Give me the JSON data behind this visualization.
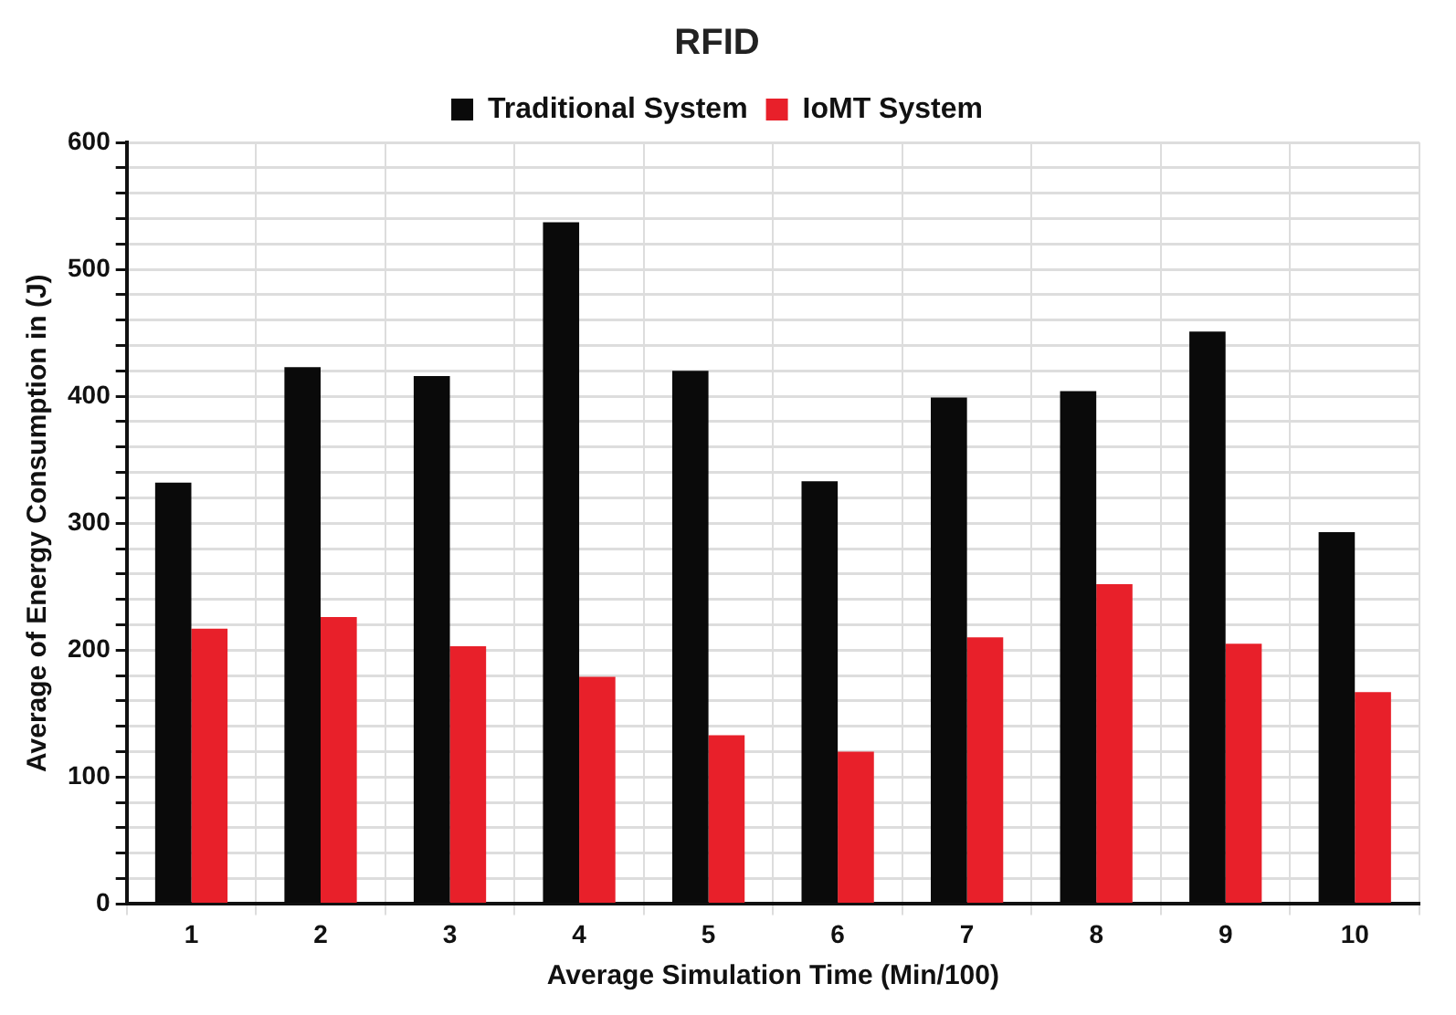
{
  "chart_data": {
    "type": "bar",
    "title": "RFID",
    "xlabel": "Average Simulation Time (Min/100)",
    "ylabel": "Average of Energy Consumption in (J)",
    "categories": [
      "1",
      "2",
      "3",
      "4",
      "5",
      "6",
      "7",
      "8",
      "9",
      "10"
    ],
    "series": [
      {
        "name": "Traditional System",
        "color": "#0a0a0a",
        "values": [
          332,
          423,
          416,
          537,
          420,
          333,
          399,
          404,
          451,
          293
        ]
      },
      {
        "name": "IoMT System",
        "color": "#e8202a",
        "values": [
          217,
          226,
          203,
          179,
          133,
          120,
          210,
          252,
          205,
          167
        ]
      }
    ],
    "ylim": [
      0,
      600
    ],
    "yticks": [
      0,
      {
        "value": 20,
        "label": null
      },
      {
        "value": 40,
        "label": null
      },
      {
        "value": 60,
        "label": null
      },
      {
        "value": 80,
        "label": null
      },
      100,
      {
        "value": 120,
        "label": null
      },
      {
        "value": 140,
        "label": null
      },
      {
        "value": 160,
        "label": null
      },
      {
        "value": 180,
        "label": null
      },
      200,
      {
        "value": 220,
        "label": null
      },
      {
        "value": 240,
        "label": null
      },
      {
        "value": 260,
        "label": null
      },
      {
        "value": 280,
        "label": null
      },
      300,
      {
        "value": 320,
        "label": null
      },
      {
        "value": 340,
        "label": null
      },
      {
        "value": 360,
        "label": null
      },
      {
        "value": 380,
        "label": null
      },
      400,
      {
        "value": 420,
        "label": null
      },
      {
        "value": 440,
        "label": null
      },
      {
        "value": 460,
        "label": null
      },
      {
        "value": 480,
        "label": null
      },
      500,
      {
        "value": 520,
        "label": null
      },
      {
        "value": 540,
        "label": null
      },
      {
        "value": 560,
        "label": null
      },
      {
        "value": 580,
        "label": null
      },
      600
    ],
    "grid": true,
    "legend": "top"
  }
}
